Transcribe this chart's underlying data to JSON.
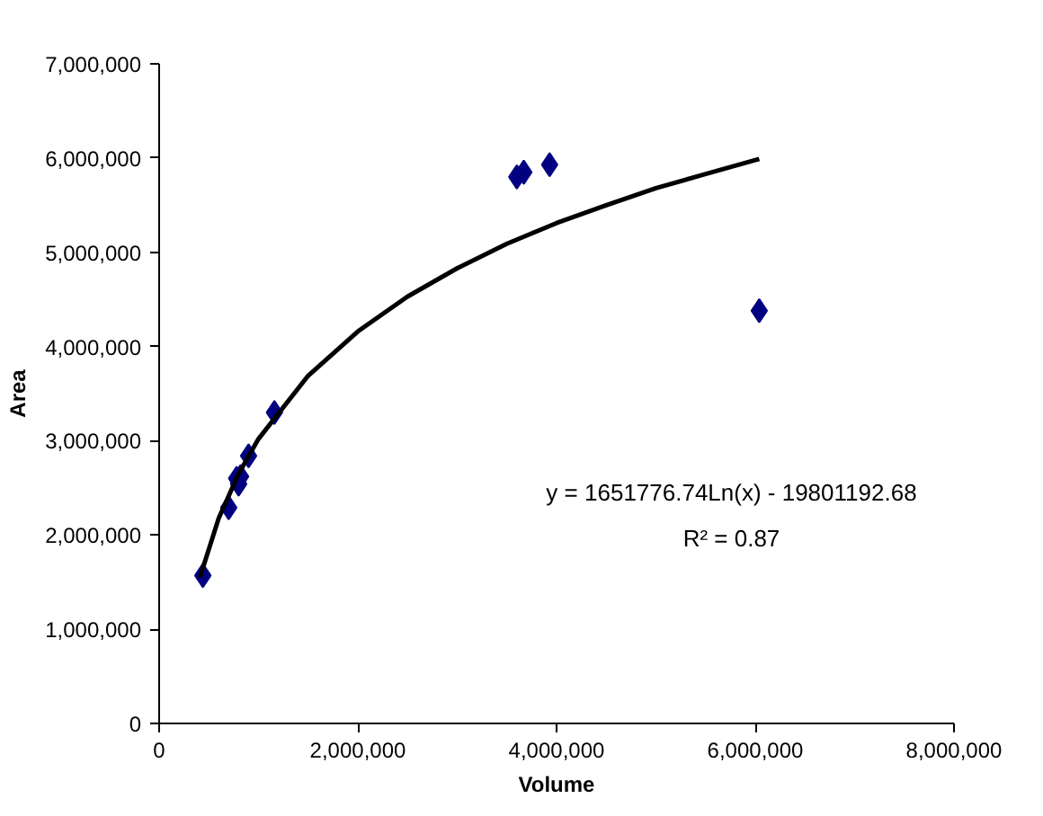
{
  "chart_data": {
    "type": "scatter",
    "xlabel": "Volume",
    "ylabel": "Area",
    "xlim": [
      0,
      8000000
    ],
    "xticks": [
      {
        "value": 0,
        "label": "0"
      },
      {
        "value": 2000000,
        "label": "2,000,000"
      },
      {
        "value": 4000000,
        "label": "4,000,000"
      },
      {
        "value": 6000000,
        "label": "6,000,000"
      },
      {
        "value": 8000000,
        "label": "8,000,000"
      }
    ],
    "ylim": [
      0,
      7000000
    ],
    "yticks": [
      {
        "value": 0,
        "label": "0"
      },
      {
        "value": 1000000,
        "label": "1,000,000"
      },
      {
        "value": 2000000,
        "label": "2,000,000"
      },
      {
        "value": 3000000,
        "label": "3,000,000"
      },
      {
        "value": 4000000,
        "label": "4,000,000"
      },
      {
        "value": 5000000,
        "label": "5,000,000"
      },
      {
        "value": 6000000,
        "label": "6,000,000"
      },
      {
        "value": 7000000,
        "label": "7,000,000"
      }
    ],
    "grid": false,
    "series": [
      {
        "marker": "diamond",
        "color": "#000080",
        "x": [
          440000,
          700000,
          780000,
          800000,
          820000,
          900000,
          1160000,
          3600000,
          3670000,
          3930000,
          6040000
        ],
        "values": [
          1570000,
          2290000,
          2600000,
          2540000,
          2620000,
          2840000,
          3300000,
          5800000,
          5850000,
          5930000,
          4380000
        ]
      },
      {
        "type": "line",
        "marker": "none",
        "line_style": "solid",
        "color": "#000000",
        "x": [
          410000,
          600000,
          800000,
          1000000,
          1500000,
          2000000,
          2500000,
          3000000,
          3500000,
          4000000,
          4500000,
          5000000,
          5500000,
          6040000
        ],
        "values": [
          1550000,
          2180000,
          2650000,
          3020000,
          3690000,
          4160000,
          4530000,
          4830000,
          5090000,
          5310000,
          5500000,
          5680000,
          5830000,
          5990000
        ]
      }
    ],
    "annotations": [
      "y = 1651776.74Ln(x) - 19801192.68",
      "R² = 0.87"
    ]
  }
}
